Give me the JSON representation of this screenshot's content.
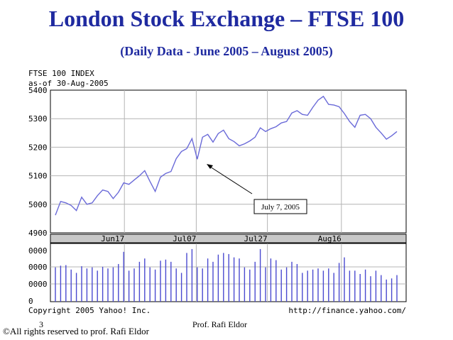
{
  "slide": {
    "title": "London Stock Exchange – FTSE 100",
    "subtitle": "(Daily Data - June 2005 – August 2005)",
    "copyright": "©All rights reserved to prof. Rafi Eldor",
    "page_number": "3",
    "author": "Prof. Rafi Eldor"
  },
  "chart_data": {
    "type": "line",
    "header_lines": [
      "FTSE 100 INDEX",
      "as-of 30-Aug-2005"
    ],
    "y_ticks": [
      5400,
      5300,
      5200,
      5100,
      5000,
      4900
    ],
    "ylim": [
      4900,
      5400
    ],
    "x_ticks": [
      "Jun17",
      "Jul07",
      "Jul27",
      "Aug16"
    ],
    "annotation": "July 7, 2005",
    "copyright": "Copyright 2005 Yahoo! Inc.",
    "url": "http://finance.yahoo.com/",
    "series": [
      {
        "values": [
          4962,
          5010,
          5005,
          4996,
          4978,
          5025,
          5000,
          5005,
          5030,
          5050,
          5045,
          5020,
          5042,
          5075,
          5070,
          5085,
          5100,
          5118,
          5080,
          5045,
          5095,
          5108,
          5115,
          5160,
          5185,
          5195,
          5230,
          5158,
          5235,
          5245,
          5218,
          5248,
          5260,
          5230,
          5220,
          5205,
          5212,
          5222,
          5235,
          5268,
          5255,
          5265,
          5272,
          5285,
          5290,
          5320,
          5328,
          5315,
          5312,
          5340,
          5365,
          5378,
          5350,
          5348,
          5342,
          5318,
          5290,
          5270,
          5312,
          5315,
          5300,
          5270,
          5250,
          5228,
          5240,
          5255
        ]
      }
    ],
    "volume_ticks": [
      "0000",
      "0000",
      "0000",
      "0"
    ],
    "volume": [
      0.62,
      0.65,
      0.66,
      0.58,
      0.52,
      0.64,
      0.6,
      0.62,
      0.56,
      0.63,
      0.6,
      0.62,
      0.68,
      0.9,
      0.56,
      0.6,
      0.72,
      0.78,
      0.62,
      0.58,
      0.74,
      0.76,
      0.72,
      0.6,
      0.52,
      0.88,
      0.95,
      0.62,
      0.6,
      0.78,
      0.72,
      0.85,
      0.88,
      0.86,
      0.8,
      0.78,
      0.62,
      0.58,
      0.72,
      0.95,
      0.62,
      0.78,
      0.75,
      0.58,
      0.62,
      0.72,
      0.68,
      0.52,
      0.56,
      0.58,
      0.6,
      0.56,
      0.6,
      0.52,
      0.7,
      0.8,
      0.56,
      0.56,
      0.5,
      0.58,
      0.46,
      0.56,
      0.48,
      0.4,
      0.42,
      0.48
    ]
  }
}
